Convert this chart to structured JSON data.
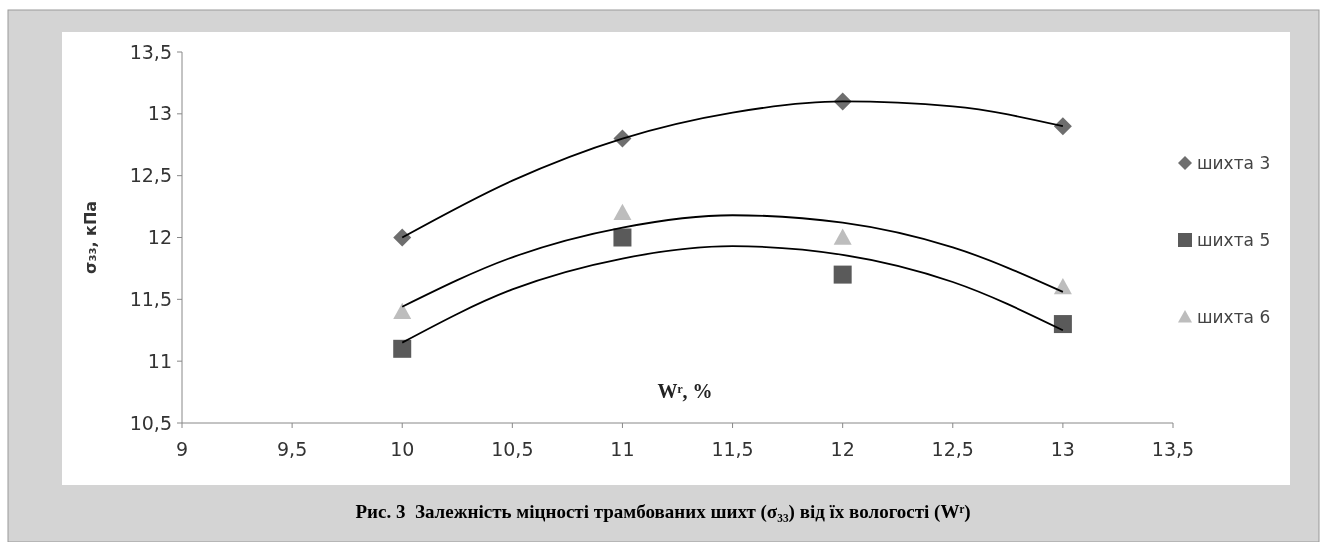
{
  "chart_data": {
    "type": "scatter",
    "title": "Рис. 3  Залежність міцності трамбованих шихт (σ₃₃) від їх вологості (Wʳ)",
    "xlabel": "Wʳ, %",
    "ylabel": "σ₃₃, кПа",
    "x": [
      10,
      11,
      12,
      13
    ],
    "xlim": [
      9,
      13.5
    ],
    "xticks": [
      9,
      {
        "value": 9.5,
        "label": "9,5"
      },
      10,
      {
        "value": 10.5,
        "label": "10,5"
      },
      11,
      {
        "value": 11.5,
        "label": "11,5"
      },
      12,
      {
        "value": 12.5,
        "label": "12,5"
      },
      13,
      {
        "value": 13.5,
        "label": "13,5"
      }
    ],
    "ylim": [
      10.5,
      13.5
    ],
    "yticks": [
      {
        "value": 10.5,
        "label": "10,5"
      },
      11,
      {
        "value": 11.5,
        "label": "11,5"
      },
      12,
      {
        "value": 12.5,
        "label": "12,5"
      },
      13,
      {
        "value": 13.5,
        "label": "13,5"
      }
    ],
    "grid": false,
    "legend": "right",
    "series": [
      {
        "name": "шихта 3",
        "color": "#6e6e6e",
        "marker": "diamond",
        "values": [
          12.0,
          12.8,
          13.1,
          12.9
        ]
      },
      {
        "name": "шихта 5",
        "color": "#5a5a5a",
        "marker": "square",
        "values": [
          11.1,
          12.0,
          11.7,
          11.3
        ]
      },
      {
        "name": "шихта 6",
        "color": "#bdbdbd",
        "marker": "triangle",
        "values": [
          11.4,
          12.2,
          12.0,
          11.6
        ]
      },
      {
        "type": "line",
        "color": "#000000",
        "marker": "none",
        "x": [
          10,
          10.5,
          11,
          11.5,
          12,
          12.5,
          13
        ],
        "values": [
          12.0,
          12.46,
          12.8,
          13.01,
          13.1,
          13.06,
          12.9
        ]
      },
      {
        "type": "line",
        "color": "#000000",
        "marker": "none",
        "x": [
          10,
          10.5,
          11,
          11.5,
          12,
          12.5,
          13
        ],
        "values": [
          11.15,
          11.58,
          11.83,
          11.93,
          11.86,
          11.64,
          11.25
        ]
      },
      {
        "type": "line",
        "color": "#000000",
        "marker": "none",
        "x": [
          10,
          10.5,
          11,
          11.5,
          12,
          12.5,
          13
        ],
        "values": [
          11.44,
          11.84,
          12.08,
          12.18,
          12.12,
          11.92,
          11.56
        ]
      }
    ]
  }
}
